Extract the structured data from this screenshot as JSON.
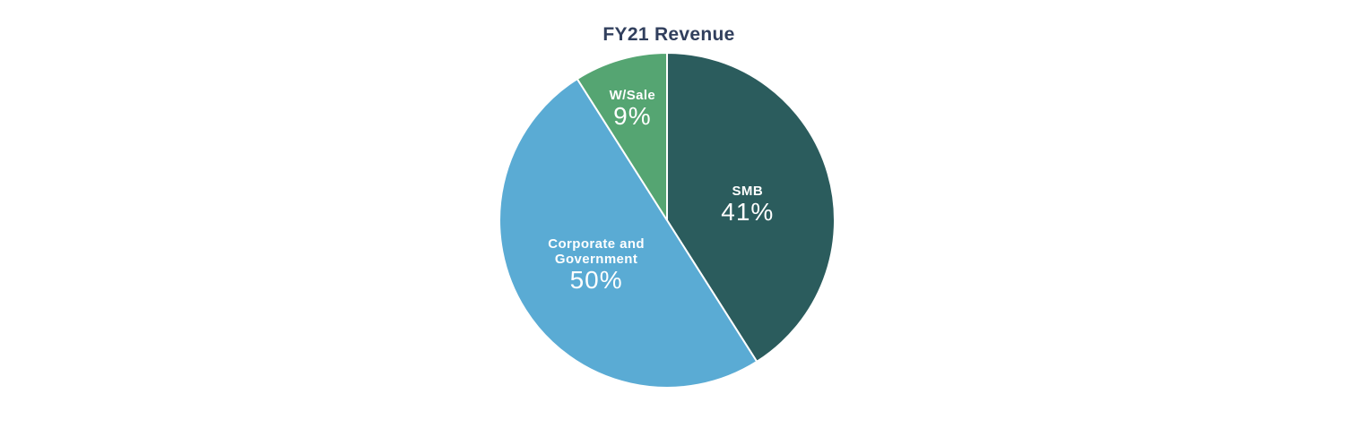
{
  "chart_data": {
    "type": "pie",
    "title": "FY21 Revenue",
    "title_color": "#313f5d",
    "background": "#ffffff",
    "start": "top",
    "direction": "clockwise",
    "legend": "none",
    "label_color": "#ffffff",
    "slice_border_color": "#ffffff",
    "slices": [
      {
        "label": "SMB",
        "label_lines": [
          "SMB"
        ],
        "pct": 41,
        "color": "#2b5c5d"
      },
      {
        "label": "Corporate and Government",
        "label_lines": [
          "Corporate and",
          "Government"
        ],
        "pct": 50,
        "color": "#5aabd4"
      },
      {
        "label": "W/Sale",
        "label_lines": [
          "W/Sale"
        ],
        "pct": 9,
        "color": "#55a572"
      }
    ]
  }
}
